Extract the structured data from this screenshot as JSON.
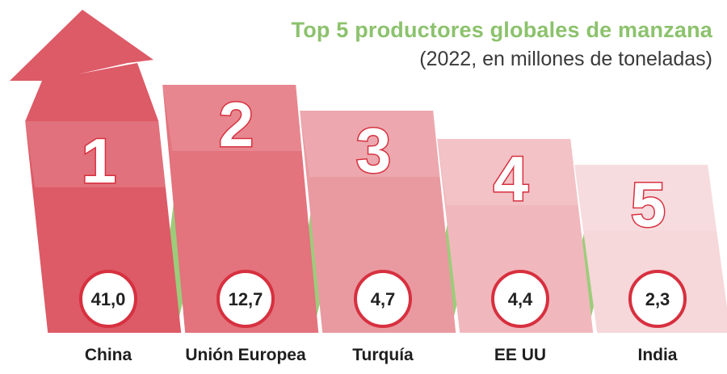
{
  "header": {
    "title": "Top 5 productores globales de manzana",
    "subtitle": "(2022, en millones de toneladas)"
  },
  "colors": {
    "title_green": "#8cc26d",
    "connector_green": "#9ccc7a",
    "bar_shades": [
      "#dd5a67",
      "#e3737d",
      "#e99aa1",
      "#f0b8bd",
      "#f6d7da"
    ],
    "circle_border": "#d7303f",
    "number_outline": "#d7303f"
  },
  "chart_data": {
    "type": "bar",
    "title": "Top 5 productores globales de manzana",
    "subtitle": "(2022, en millones de toneladas)",
    "categories": [
      "China",
      "Unión Europea",
      "Turquía",
      "EE UU",
      "India"
    ],
    "ranks": [
      "1",
      "2",
      "3",
      "4",
      "5"
    ],
    "values": [
      41.0,
      12.7,
      4.7,
      4.4,
      2.3
    ],
    "value_labels": [
      "41,0",
      "12,7",
      "4,7",
      "4,4",
      "2,3"
    ]
  }
}
